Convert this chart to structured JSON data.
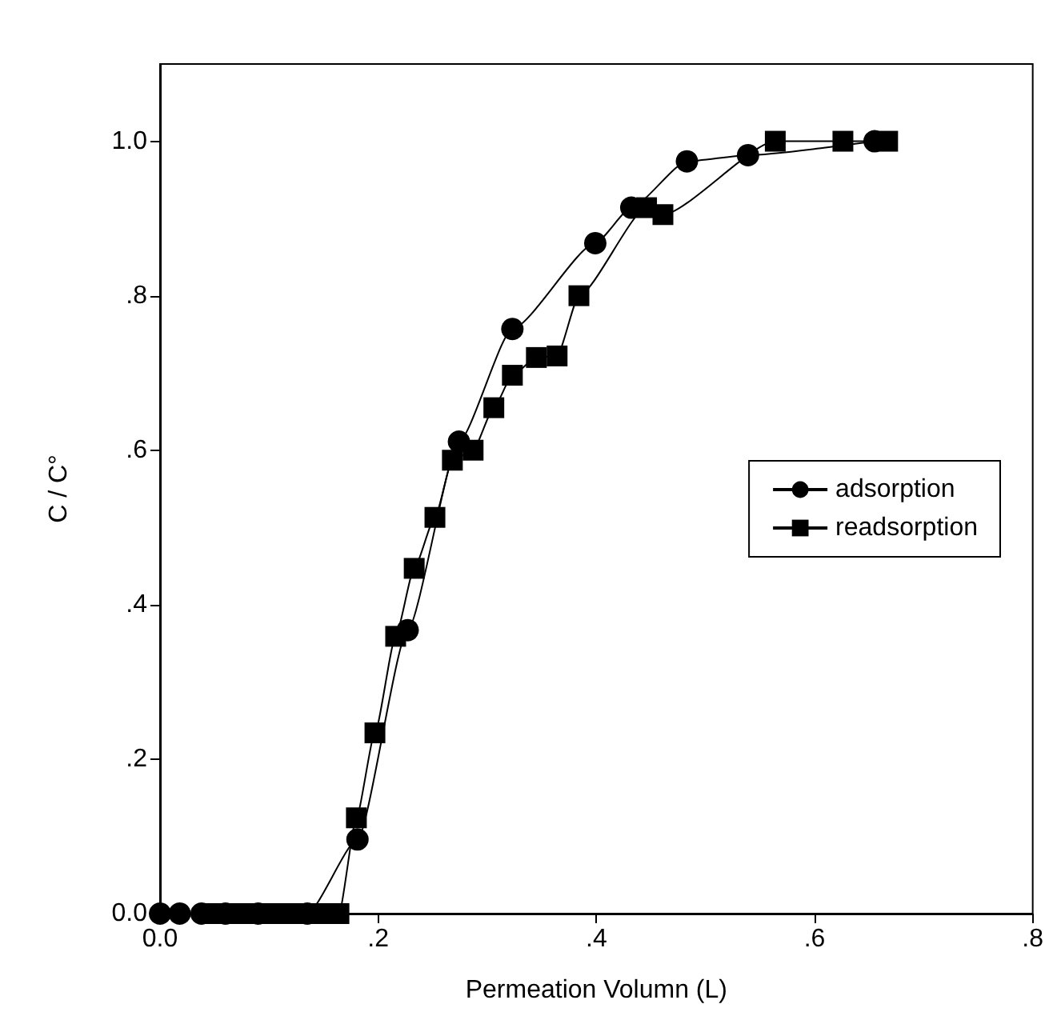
{
  "chart_data": {
    "type": "line",
    "xlabel": "Permeation Volumn (L)",
    "ylabel": "C / C°",
    "xlim": [
      0,
      0.8
    ],
    "ylim": [
      0,
      1.1
    ],
    "xticks": [
      {
        "value": 0,
        "label": "0.0"
      },
      {
        "value": 0.2,
        "label": ".2"
      },
      {
        "value": 0.4,
        "label": ".4"
      },
      {
        "value": 0.6,
        "label": ".6"
      },
      {
        "value": 0.8,
        "label": ".8"
      }
    ],
    "yticks": [
      {
        "value": 0,
        "label": "0.0"
      },
      {
        "value": 0.2,
        "label": ".2"
      },
      {
        "value": 0.4,
        "label": ".4"
      },
      {
        "value": 0.6,
        "label": ".6"
      },
      {
        "value": 0.8,
        "label": ".8"
      },
      {
        "value": 1,
        "label": "1.0"
      }
    ],
    "legend": "right",
    "line_style": "solid",
    "series": [
      {
        "name": "adsorption",
        "color": "#000000",
        "marker": "circle",
        "x": [
          0,
          0.018,
          0.038,
          0.06,
          0.09,
          0.135,
          0.181,
          0.227,
          0.274,
          0.323,
          0.399,
          0.432,
          0.483,
          0.539,
          0.655
        ],
        "values": [
          0,
          0,
          0,
          0,
          0,
          0,
          0.096,
          0.367,
          0.611,
          0.757,
          0.868,
          0.914,
          0.974,
          0.982,
          1.0
        ]
      },
      {
        "name": "readsorption",
        "color": "#000000",
        "marker": "square",
        "x": [
          0.048,
          0.06,
          0.07,
          0.08,
          0.09,
          0.1,
          0.11,
          0.12,
          0.13,
          0.14,
          0.15,
          0.164,
          0.18,
          0.197,
          0.216,
          0.233,
          0.252,
          0.268,
          0.287,
          0.306,
          0.323,
          0.345,
          0.364,
          0.384,
          0.446,
          0.461,
          0.564,
          0.626,
          0.667
        ],
        "values": [
          0,
          0,
          0,
          0,
          0,
          0,
          0,
          0,
          0,
          0,
          0,
          0,
          0.124,
          0.234,
          0.359,
          0.447,
          0.513,
          0.587,
          0.6,
          0.655,
          0.697,
          0.72,
          0.722,
          0.8,
          0.914,
          0.905,
          1.0,
          1.0,
          1.0
        ]
      }
    ]
  }
}
